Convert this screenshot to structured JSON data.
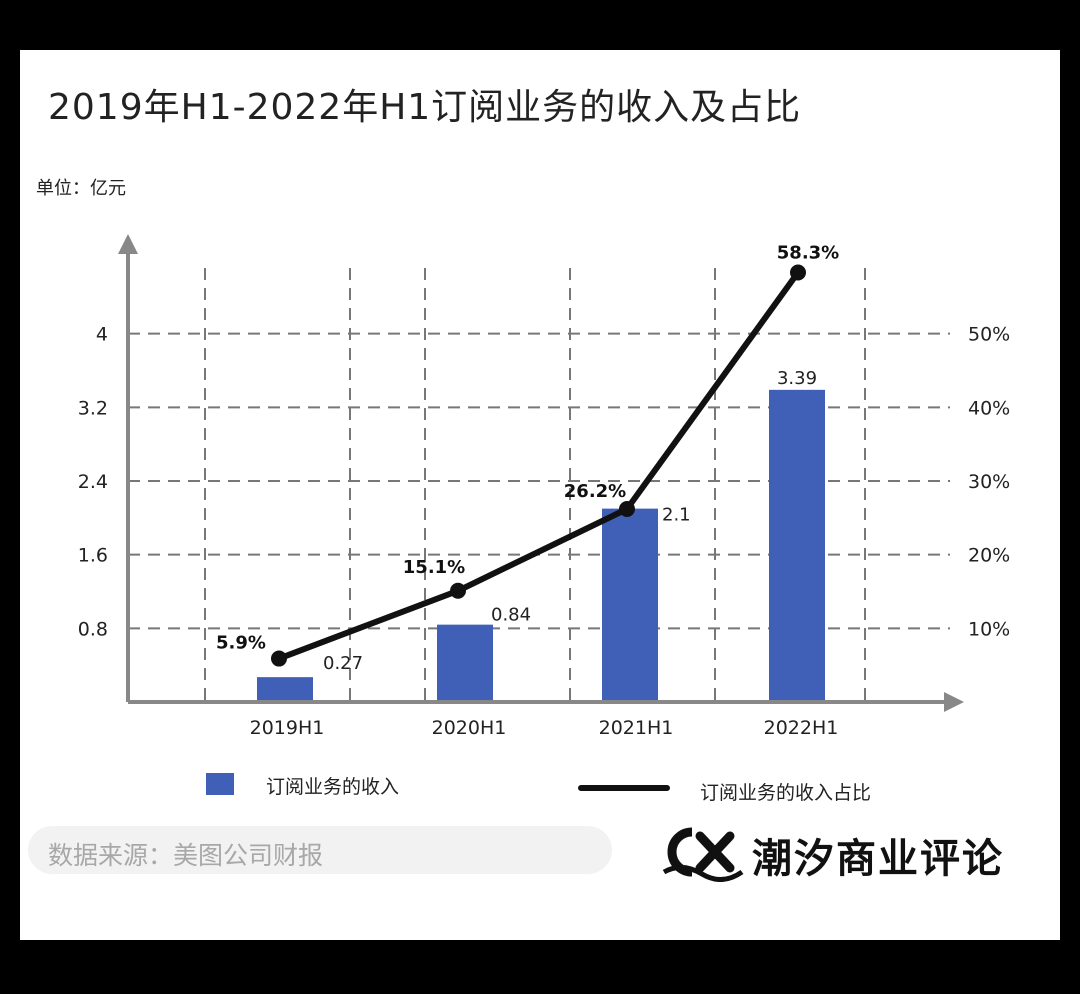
{
  "title": "2019年H1-2022年H1订阅业务的收入及占比",
  "unit": "单位：亿元",
  "chart_data": {
    "type": "bar",
    "categories": [
      "2019H1",
      "2020H1",
      "2021H1",
      "2022H1"
    ],
    "series": [
      {
        "name": "订阅业务的收入",
        "type": "bar",
        "values": [
          0.27,
          0.84,
          2.1,
          3.39
        ],
        "labels": [
          "0.27",
          "0.84",
          "2.1",
          "3.39"
        ],
        "color": "#4060b8"
      },
      {
        "name": "订阅业务的收入占比",
        "type": "line",
        "values": [
          5.9,
          15.1,
          26.2,
          58.3
        ],
        "labels": [
          "5.9%",
          "15.1%",
          "26.2%",
          "58.3%"
        ],
        "color": "#111111",
        "axis": "right"
      }
    ],
    "y_left": {
      "ticks": [
        "0.8",
        "1.6",
        "2.4",
        "3.2",
        "4"
      ],
      "range": [
        0,
        4.8
      ]
    },
    "y_right": {
      "ticks": [
        "10%",
        "20%",
        "30%",
        "40%",
        "50%"
      ],
      "range": [
        0,
        60
      ]
    },
    "grid": true,
    "legend": "bottom"
  },
  "legend": {
    "bar_label": "订阅业务的收入",
    "line_label": "订阅业务的收入占比"
  },
  "source": "数据来源：美图公司财报",
  "brand": {
    "name": "潮汐商业评论",
    "logo_text": "CX"
  }
}
